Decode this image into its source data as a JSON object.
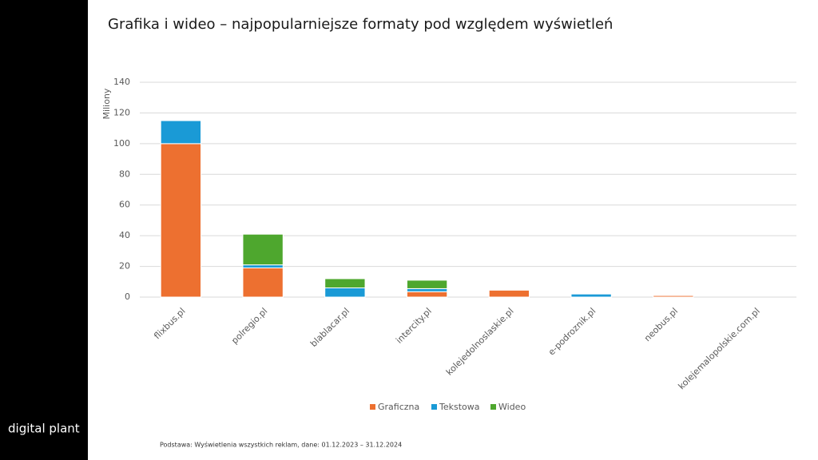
{
  "brand": "digital plant",
  "chart_data": {
    "type": "stacked-bar",
    "title": "Grafika i wideo – najpopularniejsze formaty pod względem  wyświetleń",
    "y_label": "Miliony",
    "note": "Podstawa: Wyświetlenia wszystkich reklam, dane: 01.12.2023 – 31.12.2024",
    "categories": [
      "flixbus.pl",
      "polregio.pl",
      "blablacar.pl",
      "intercity.pl",
      "kolejedolnoslaskie.pl",
      "e-podroznik.pl",
      "neobus.pl",
      "kolejemalopolskie.com.pl"
    ],
    "series": [
      {
        "name": "Graficzna",
        "color": "#ed7030",
        "values": [
          100,
          19,
          0,
          3.5,
          4.5,
          0,
          1,
          0
        ]
      },
      {
        "name": "Tekstowa",
        "color": "#1a9ad6",
        "values": [
          15,
          2,
          6,
          2,
          0,
          2,
          0,
          0
        ]
      },
      {
        "name": "Wideo",
        "color": "#4ea72e",
        "values": [
          0,
          20,
          6,
          5.5,
          0,
          0,
          0,
          0
        ]
      }
    ],
    "ylim": [
      0,
      140
    ],
    "yticks": [
      0,
      20,
      40,
      60,
      80,
      100,
      120,
      140
    ],
    "grid": true,
    "legend": "bottom"
  }
}
